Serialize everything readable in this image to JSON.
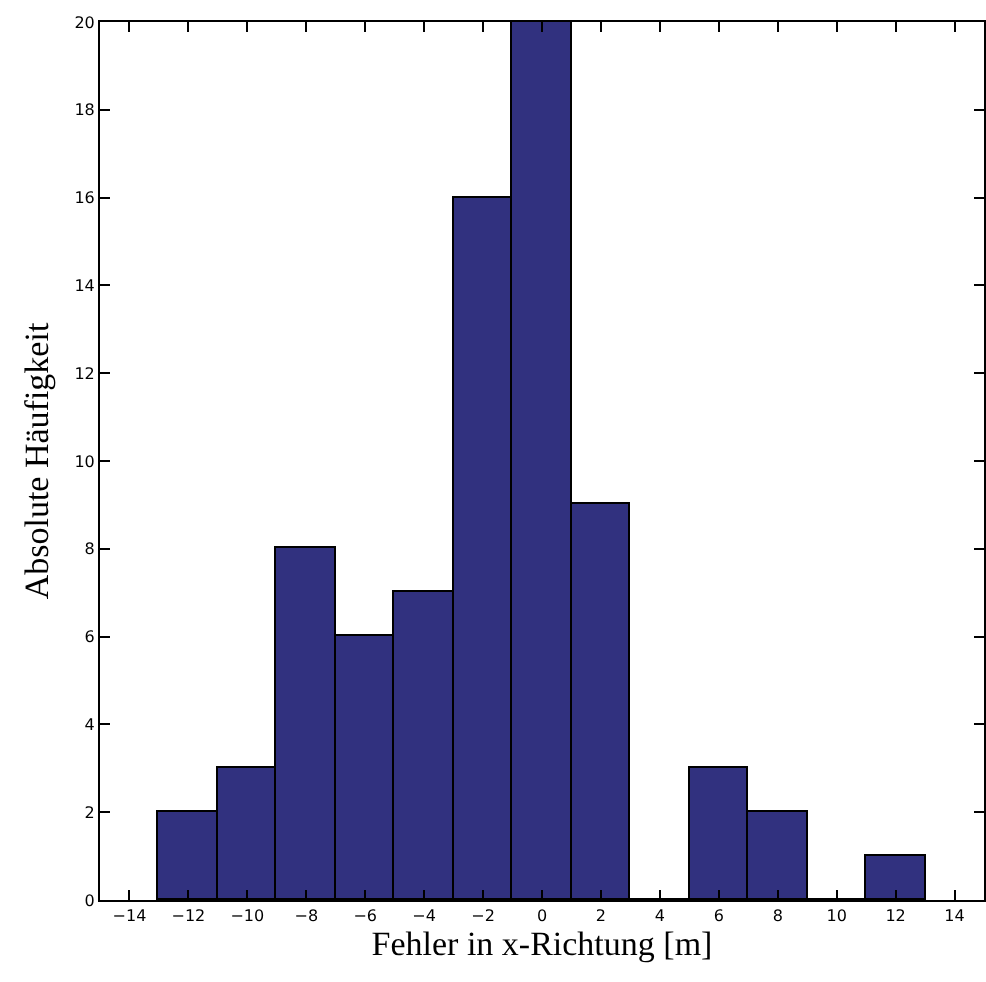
{
  "chart_data": {
    "type": "histogram",
    "xlabel": "Fehler in x-Richtung [m]",
    "ylabel": "Absolute Häufigkeit",
    "bins": [
      -13,
      -11,
      -9,
      -7,
      -5,
      -3,
      -1,
      1,
      3,
      5,
      7,
      9,
      11,
      13
    ],
    "values": [
      2,
      3,
      8,
      6,
      7,
      16,
      20,
      9,
      0,
      3,
      2,
      0,
      1
    ],
    "color": "#31317f",
    "xlim": [
      -15,
      15
    ],
    "xticks": [
      -14,
      -12,
      -10,
      -8,
      -6,
      -4,
      -2,
      0,
      2,
      4,
      6,
      8,
      10,
      12,
      14
    ],
    "ylim": [
      0,
      20
    ],
    "yticks": [
      0,
      2,
      4,
      6,
      8,
      10,
      12,
      14,
      16,
      18,
      20
    ]
  }
}
